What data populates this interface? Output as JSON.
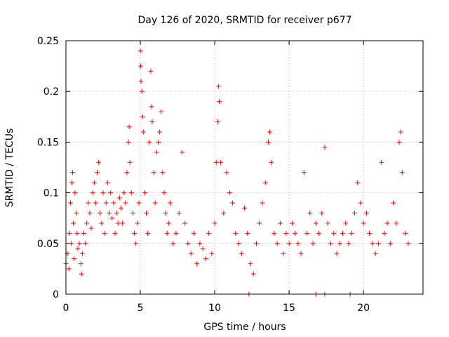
{
  "chart_data": {
    "type": "scatter",
    "title": "Day 126 of 2020, SRMTID for receiver p677",
    "xlabel": "GPS time / hours",
    "ylabel": "SRMTID / TECUs",
    "xlim": [
      0,
      24
    ],
    "ylim": [
      0,
      0.25
    ],
    "x_ticks": [
      0,
      5,
      10,
      15,
      20
    ],
    "x_tick_labels": [
      "0",
      "5",
      "10",
      "15",
      "20"
    ],
    "y_ticks": [
      0,
      0.05,
      0.1,
      0.15,
      0.2,
      0.25
    ],
    "y_tick_labels": [
      "0",
      "0.05",
      "0.1",
      "0.15",
      "0.2",
      "0.25"
    ],
    "grid": true,
    "marker": "+",
    "color": "#ff0000",
    "series": [
      {
        "name": "SRMTID",
        "points": [
          [
            0.0,
            0.03
          ],
          [
            0.1,
            0.04
          ],
          [
            0.2,
            0.025
          ],
          [
            0.25,
            0.06
          ],
          [
            0.3,
            0.09
          ],
          [
            0.35,
            0.05
          ],
          [
            0.4,
            0.11
          ],
          [
            0.45,
            0.12
          ],
          [
            0.5,
            0.07
          ],
          [
            0.55,
            0.035
          ],
          [
            0.6,
            0.1
          ],
          [
            0.7,
            0.08
          ],
          [
            0.75,
            0.06
          ],
          [
            0.8,
            0.045
          ],
          [
            0.9,
            0.05
          ],
          [
            1.0,
            0.03
          ],
          [
            1.05,
            0.02
          ],
          [
            1.1,
            0.04
          ],
          [
            1.2,
            0.06
          ],
          [
            1.3,
            0.05
          ],
          [
            1.4,
            0.07
          ],
          [
            1.5,
            0.09
          ],
          [
            1.6,
            0.08
          ],
          [
            1.7,
            0.065
          ],
          [
            1.8,
            0.1
          ],
          [
            1.9,
            0.11
          ],
          [
            2.0,
            0.09
          ],
          [
            2.1,
            0.12
          ],
          [
            2.2,
            0.13
          ],
          [
            2.3,
            0.08
          ],
          [
            2.4,
            0.07
          ],
          [
            2.5,
            0.1
          ],
          [
            2.6,
            0.06
          ],
          [
            2.7,
            0.09
          ],
          [
            2.8,
            0.11
          ],
          [
            2.9,
            0.08
          ],
          [
            3.0,
            0.1
          ],
          [
            3.1,
            0.075
          ],
          [
            3.2,
            0.09
          ],
          [
            3.3,
            0.06
          ],
          [
            3.4,
            0.08
          ],
          [
            3.5,
            0.07
          ],
          [
            3.6,
            0.095
          ],
          [
            3.7,
            0.085
          ],
          [
            3.8,
            0.07
          ],
          [
            3.9,
            0.1
          ],
          [
            4.0,
            0.09
          ],
          [
            4.1,
            0.12
          ],
          [
            4.2,
            0.15
          ],
          [
            4.25,
            0.165
          ],
          [
            4.3,
            0.13
          ],
          [
            4.4,
            0.1
          ],
          [
            4.5,
            0.08
          ],
          [
            4.6,
            0.06
          ],
          [
            4.7,
            0.05
          ],
          [
            4.8,
            0.07
          ],
          [
            4.9,
            0.09
          ],
          [
            5.0,
            0.24
          ],
          [
            5.02,
            0.225
          ],
          [
            5.05,
            0.21
          ],
          [
            5.1,
            0.2
          ],
          [
            5.15,
            0.175
          ],
          [
            5.2,
            0.16
          ],
          [
            5.3,
            0.1
          ],
          [
            5.4,
            0.08
          ],
          [
            5.5,
            0.06
          ],
          [
            5.6,
            0.15
          ],
          [
            5.7,
            0.22
          ],
          [
            5.75,
            0.185
          ],
          [
            5.8,
            0.17
          ],
          [
            5.9,
            0.12
          ],
          [
            6.0,
            0.09
          ],
          [
            6.1,
            0.14
          ],
          [
            6.2,
            0.15
          ],
          [
            6.3,
            0.16
          ],
          [
            6.4,
            0.18
          ],
          [
            6.5,
            0.12
          ],
          [
            6.6,
            0.1
          ],
          [
            6.7,
            0.08
          ],
          [
            6.8,
            0.06
          ],
          [
            6.9,
            0.07
          ],
          [
            7.0,
            0.09
          ],
          [
            7.2,
            0.05
          ],
          [
            7.4,
            0.06
          ],
          [
            7.6,
            0.08
          ],
          [
            7.8,
            0.14
          ],
          [
            8.0,
            0.07
          ],
          [
            8.2,
            0.05
          ],
          [
            8.4,
            0.04
          ],
          [
            8.6,
            0.06
          ],
          [
            8.8,
            0.03
          ],
          [
            9.0,
            0.05
          ],
          [
            9.2,
            0.045
          ],
          [
            9.4,
            0.035
          ],
          [
            9.6,
            0.06
          ],
          [
            9.8,
            0.04
          ],
          [
            10.0,
            0.07
          ],
          [
            10.1,
            0.13
          ],
          [
            10.2,
            0.17
          ],
          [
            10.25,
            0.205
          ],
          [
            10.3,
            0.19
          ],
          [
            10.4,
            0.13
          ],
          [
            10.6,
            0.08
          ],
          [
            10.8,
            0.12
          ],
          [
            11.0,
            0.1
          ],
          [
            11.2,
            0.09
          ],
          [
            11.4,
            0.06
          ],
          [
            11.6,
            0.05
          ],
          [
            11.8,
            0.04
          ],
          [
            12.0,
            0.085
          ],
          [
            12.2,
            0.06
          ],
          [
            12.4,
            0.03
          ],
          [
            12.6,
            0.02
          ],
          [
            12.8,
            0.05
          ],
          [
            13.0,
            0.07
          ],
          [
            13.2,
            0.09
          ],
          [
            13.4,
            0.11
          ],
          [
            13.6,
            0.15
          ],
          [
            13.7,
            0.16
          ],
          [
            13.8,
            0.13
          ],
          [
            14.0,
            0.06
          ],
          [
            14.2,
            0.05
          ],
          [
            14.4,
            0.07
          ],
          [
            14.6,
            0.04
          ],
          [
            14.8,
            0.06
          ],
          [
            15.0,
            0.05
          ],
          [
            15.2,
            0.07
          ],
          [
            15.4,
            0.06
          ],
          [
            15.6,
            0.05
          ],
          [
            15.8,
            0.04
          ],
          [
            16.0,
            0.12
          ],
          [
            16.2,
            0.06
          ],
          [
            16.4,
            0.08
          ],
          [
            16.6,
            0.05
          ],
          [
            16.8,
            0.07
          ],
          [
            17.0,
            0.06
          ],
          [
            17.2,
            0.08
          ],
          [
            17.4,
            0.145
          ],
          [
            17.6,
            0.07
          ],
          [
            17.8,
            0.05
          ],
          [
            18.0,
            0.06
          ],
          [
            18.2,
            0.04
          ],
          [
            18.4,
            0.05
          ],
          [
            18.6,
            0.06
          ],
          [
            18.8,
            0.07
          ],
          [
            19.0,
            0.05
          ],
          [
            19.2,
            0.06
          ],
          [
            19.4,
            0.08
          ],
          [
            19.6,
            0.11
          ],
          [
            19.8,
            0.09
          ],
          [
            20.0,
            0.07
          ],
          [
            20.2,
            0.08
          ],
          [
            20.4,
            0.06
          ],
          [
            20.6,
            0.05
          ],
          [
            20.8,
            0.04
          ],
          [
            21.0,
            0.05
          ],
          [
            21.2,
            0.13
          ],
          [
            21.4,
            0.06
          ],
          [
            21.6,
            0.07
          ],
          [
            21.8,
            0.05
          ],
          [
            22.0,
            0.09
          ],
          [
            22.2,
            0.07
          ],
          [
            22.4,
            0.15
          ],
          [
            22.5,
            0.16
          ],
          [
            22.6,
            0.12
          ],
          [
            22.8,
            0.06
          ],
          [
            23.0,
            0.05
          ],
          [
            16.8,
            0.0
          ],
          [
            17.4,
            0.0
          ],
          [
            19.1,
            0.0
          ],
          [
            12.3,
            0.0
          ]
        ]
      }
    ]
  }
}
